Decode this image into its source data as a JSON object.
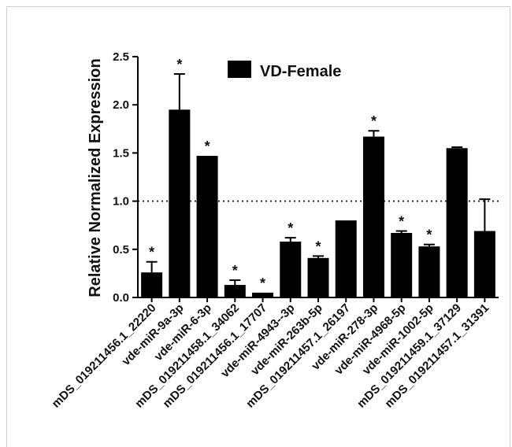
{
  "chart_data": {
    "type": "bar",
    "ylabel": "Relative Normalized Expression",
    "ylim": [
      0,
      2.5
    ],
    "yticks": [
      "0.0",
      "0.5",
      "1.0",
      "1.5",
      "2.0",
      "2.5"
    ],
    "reference_line": 1.0,
    "series": [
      {
        "name": "VD-Female",
        "color": "#000000"
      }
    ],
    "categories": [
      "mDS_019211456.1_22220",
      "vde-miR-9a-3p",
      "vde-miR-6-3p",
      "mDS_019211458.1_34062",
      "mDS_019211456.1_17707",
      "vde-miR-4943--3p",
      "vde-miR-263b-5p",
      "mDS_019211457.1_26197",
      "vde-miR-278-3p",
      "vde-miR-4968-5p",
      "vde-miR-1002-5p",
      "mDS_019211459.1_37129",
      "mDS_019211457.1_31391"
    ],
    "values": [
      0.26,
      1.95,
      1.47,
      0.13,
      0.05,
      0.58,
      0.41,
      0.8,
      1.67,
      0.67,
      0.53,
      1.55,
      0.69
    ],
    "errors": [
      0.11,
      0.37,
      0.0,
      0.05,
      0.0,
      0.04,
      0.02,
      0.0,
      0.06,
      0.02,
      0.02,
      0.01,
      0.33
    ],
    "significant": [
      true,
      true,
      true,
      true,
      true,
      true,
      true,
      false,
      true,
      true,
      true,
      false,
      false
    ],
    "significance_marker": "*"
  }
}
